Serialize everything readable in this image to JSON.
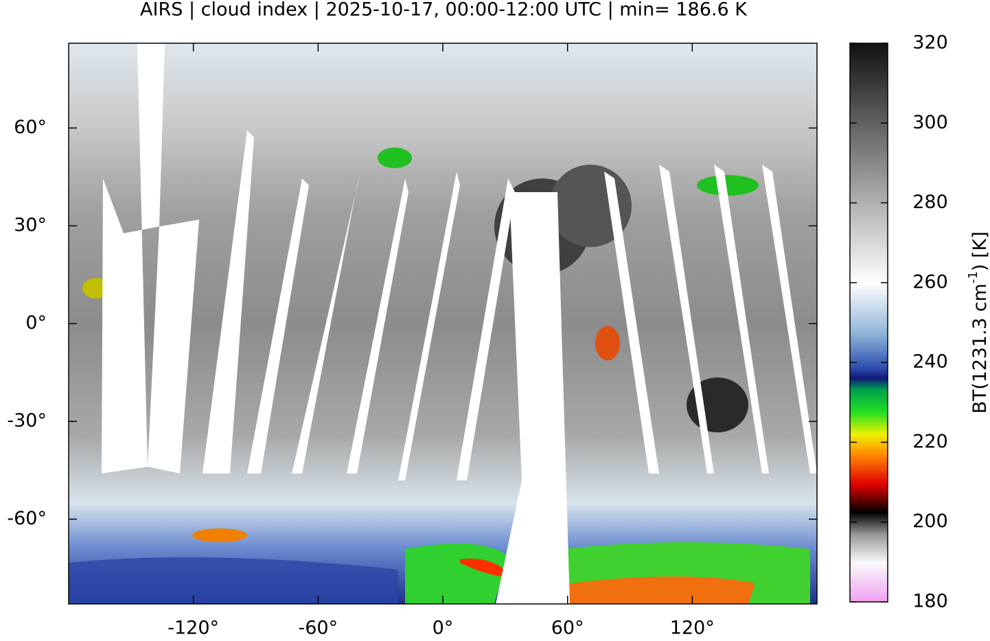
{
  "chart_data": {
    "type": "map",
    "title": "AIRS | cloud index | 2025-10-17, 00:00-12:00 UTC | min= 186.6 K",
    "xlim": [
      -180,
      180
    ],
    "ylim": [
      -86,
      86
    ],
    "xticks": [
      {
        "value": -120,
        "label": "-120°"
      },
      {
        "value": -60,
        "label": "-60°"
      },
      {
        "value": 0,
        "label": "0°"
      },
      {
        "value": 60,
        "label": "60°"
      },
      {
        "value": 120,
        "label": "120°"
      }
    ],
    "yticks": [
      {
        "value": 60,
        "label": "60°"
      },
      {
        "value": 30,
        "label": "30°"
      },
      {
        "value": 0,
        "label": "0°"
      },
      {
        "value": -30,
        "label": "-30°"
      },
      {
        "value": -60,
        "label": "-60°"
      }
    ],
    "colorbar": {
      "lim": [
        180,
        320
      ],
      "ticks": [
        180,
        200,
        220,
        240,
        260,
        280,
        300,
        320
      ],
      "label": [
        "BT(1231.3 cm",
        "-1",
        ") [K]"
      ]
    }
  }
}
